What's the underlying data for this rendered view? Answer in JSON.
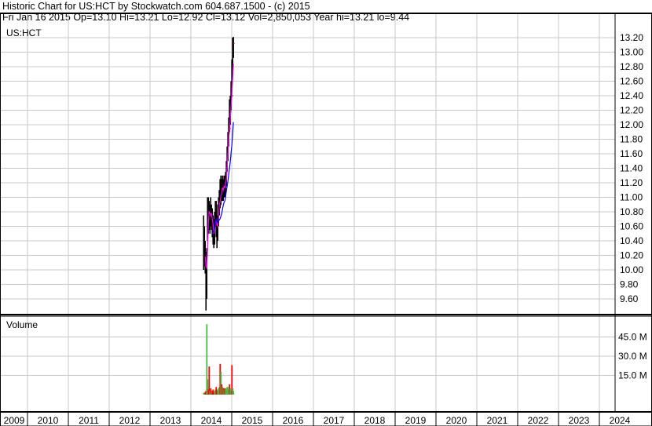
{
  "header": {
    "title": "Historic Chart for US:HCT by Stockwatch.com 604.687.1500 - (c) 2015",
    "quote_line": "Fri Jan 16 2015   Op=13.10  Hi=13.21  Lo=12.92  Cl=13.12  Vol=2,850,053   Year hi=13.21  lo=9.44"
  },
  "colors": {
    "up": "#44bb44",
    "down": "#ff0000",
    "price_bar": "#000000",
    "ma_short": "#ff00ff",
    "ma_long": "#0000ff",
    "grid": "#c8c8c8"
  },
  "chart_data": {
    "type": "ohlc-bar-with-volume",
    "symbol_label": "US:HCT",
    "volume_label": "Volume",
    "price_ticks": [
      "13.20",
      "13.00",
      "12.80",
      "12.60",
      "12.40",
      "12.20",
      "12.00",
      "11.80",
      "11.60",
      "11.40",
      "11.20",
      "11.00",
      "10.80",
      "10.60",
      "10.40",
      "10.20",
      "10.00",
      "9.80",
      "9.60"
    ],
    "volume_ticks": [
      "45.0 M",
      "30.0 M",
      "15.0 M"
    ],
    "volume_tick_values": [
      45,
      30,
      15
    ],
    "x_ticks": [
      "2009",
      "2010",
      "2011",
      "2012",
      "2013",
      "2014",
      "2015",
      "2016",
      "2017",
      "2018",
      "2019",
      "2020",
      "2021",
      "2022",
      "2023",
      "2024"
    ],
    "grid": true,
    "moving_averages": [
      "short",
      "long"
    ],
    "bars": [
      {
        "date": "2014-04-25",
        "h": 10.75,
        "l": 10.0,
        "c": 10.2,
        "v": 1.5
      },
      {
        "date": "2014-05-02",
        "h": 10.6,
        "l": 10.05,
        "c": 10.3,
        "v": 1.2
      },
      {
        "date": "2014-05-09",
        "h": 10.4,
        "l": 9.95,
        "c": 10.05,
        "v": 2.0
      },
      {
        "date": "2014-05-16",
        "h": 10.25,
        "l": 9.44,
        "c": 9.8,
        "v": 3.0
      },
      {
        "date": "2014-05-23",
        "h": 10.3,
        "l": 9.6,
        "c": 10.2,
        "v": 55
      },
      {
        "date": "2014-05-30",
        "h": 11.0,
        "l": 10.4,
        "c": 10.9,
        "v": 12
      },
      {
        "date": "2014-06-06",
        "h": 11.0,
        "l": 10.5,
        "c": 10.8,
        "v": 4
      },
      {
        "date": "2014-06-13",
        "h": 10.95,
        "l": 10.55,
        "c": 10.7,
        "v": 22
      },
      {
        "date": "2014-06-20",
        "h": 10.9,
        "l": 10.5,
        "c": 10.85,
        "v": 3
      },
      {
        "date": "2014-06-27",
        "h": 11.0,
        "l": 10.6,
        "c": 10.7,
        "v": 5
      },
      {
        "date": "2014-07-04",
        "h": 10.9,
        "l": 10.55,
        "c": 10.8,
        "v": 2
      },
      {
        "date": "2014-07-11",
        "h": 10.85,
        "l": 10.45,
        "c": 10.6,
        "v": 3
      },
      {
        "date": "2014-07-18",
        "h": 10.75,
        "l": 10.35,
        "c": 10.5,
        "v": 4
      },
      {
        "date": "2014-07-25",
        "h": 10.7,
        "l": 10.3,
        "c": 10.4,
        "v": 2
      },
      {
        "date": "2014-08-01",
        "h": 10.8,
        "l": 10.35,
        "c": 10.7,
        "v": 3
      },
      {
        "date": "2014-08-08",
        "h": 10.95,
        "l": 10.6,
        "c": 10.85,
        "v": 4
      },
      {
        "date": "2014-08-15",
        "h": 10.95,
        "l": 10.45,
        "c": 10.55,
        "v": 6
      },
      {
        "date": "2014-08-22",
        "h": 10.75,
        "l": 10.3,
        "c": 10.45,
        "v": 3
      },
      {
        "date": "2014-08-29",
        "h": 10.9,
        "l": 10.4,
        "c": 10.8,
        "v": 4
      },
      {
        "date": "2014-09-05",
        "h": 11.0,
        "l": 10.6,
        "c": 10.95,
        "v": 5
      },
      {
        "date": "2014-09-12",
        "h": 11.1,
        "l": 10.75,
        "c": 10.95,
        "v": 6
      },
      {
        "date": "2014-09-19",
        "h": 11.25,
        "l": 10.85,
        "c": 10.9,
        "v": 24
      },
      {
        "date": "2014-09-26",
        "h": 11.3,
        "l": 10.9,
        "c": 11.2,
        "v": 18
      },
      {
        "date": "2014-10-03",
        "h": 11.25,
        "l": 10.95,
        "c": 11.05,
        "v": 8
      },
      {
        "date": "2014-10-10",
        "h": 11.3,
        "l": 10.95,
        "c": 11.15,
        "v": 6
      },
      {
        "date": "2014-10-17",
        "h": 11.25,
        "l": 10.95,
        "c": 11.1,
        "v": 5
      },
      {
        "date": "2014-10-24",
        "h": 11.3,
        "l": 11.0,
        "c": 11.2,
        "v": 4
      },
      {
        "date": "2014-10-31",
        "h": 11.3,
        "l": 11.0,
        "c": 11.1,
        "v": 5
      },
      {
        "date": "2014-11-07",
        "h": 11.35,
        "l": 11.05,
        "c": 11.25,
        "v": 4
      },
      {
        "date": "2014-11-14",
        "h": 11.5,
        "l": 11.15,
        "c": 11.4,
        "v": 5
      },
      {
        "date": "2014-11-21",
        "h": 11.7,
        "l": 11.35,
        "c": 11.6,
        "v": 6
      },
      {
        "date": "2014-11-28",
        "h": 11.9,
        "l": 11.5,
        "c": 11.8,
        "v": 4
      },
      {
        "date": "2014-12-05",
        "h": 12.1,
        "l": 11.7,
        "c": 12.0,
        "v": 6
      },
      {
        "date": "2014-12-12",
        "h": 12.35,
        "l": 11.9,
        "c": 11.95,
        "v": 8
      },
      {
        "date": "2014-12-19",
        "h": 12.4,
        "l": 12.0,
        "c": 12.3,
        "v": 5
      },
      {
        "date": "2014-12-26",
        "h": 12.6,
        "l": 12.2,
        "c": 12.5,
        "v": 3
      },
      {
        "date": "2015-01-02",
        "h": 12.9,
        "l": 12.45,
        "c": 12.4,
        "v": 23
      },
      {
        "date": "2015-01-09",
        "h": 13.2,
        "l": 12.75,
        "c": 13.0,
        "v": 5
      },
      {
        "date": "2015-01-16",
        "h": 13.21,
        "l": 12.92,
        "c": 13.12,
        "v": 2.85
      }
    ]
  }
}
